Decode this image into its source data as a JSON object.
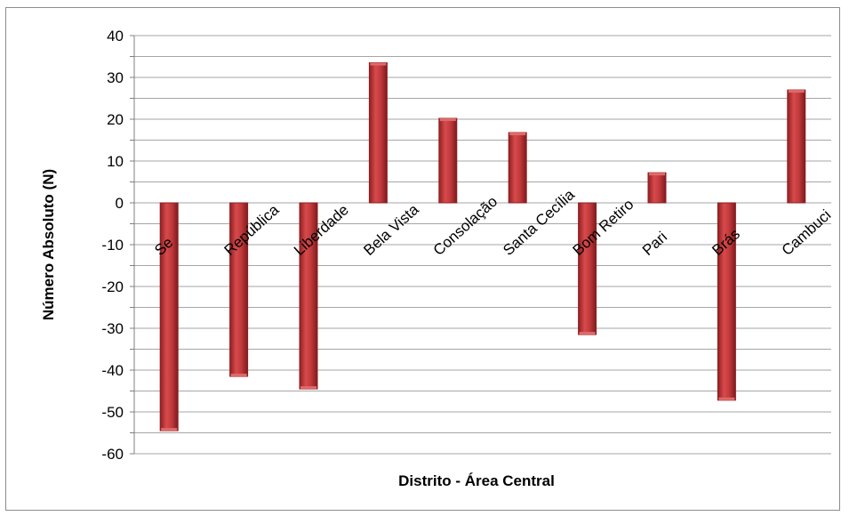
{
  "chart_data": {
    "type": "bar",
    "title": "",
    "xlabel": "Distrito - Área Central",
    "ylabel": "Número Absoluto (N)",
    "ylim": [
      -60,
      40
    ],
    "yticks": [
      40,
      30,
      20,
      10,
      0,
      -10,
      -20,
      -30,
      -40,
      -50,
      -60
    ],
    "grid": true,
    "legend": "none",
    "categories": [
      "Se",
      "República",
      "Liberdade",
      "Bela Vista",
      "Consolação",
      "Santa Cecília",
      "Bom Retiro",
      "Pari",
      "Brás",
      "Cambuci"
    ],
    "values": [
      -54.5,
      -41.5,
      -44.5,
      33.5,
      20.2,
      16.8,
      -31.5,
      7.2,
      -47.2,
      27.0
    ],
    "colors": {
      "bar": "#c0393b",
      "bar_dark": "#8e1f22",
      "bar_light": "#e06a6a",
      "grid": "#a6a6a6",
      "axis": "#808080"
    }
  }
}
